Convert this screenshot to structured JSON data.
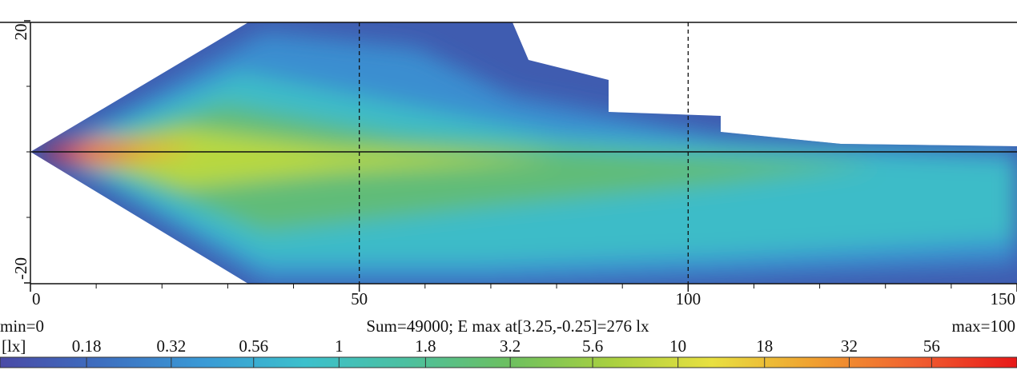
{
  "chart_data": {
    "type": "heatmap",
    "xlim": [
      0,
      150
    ],
    "xticks": [
      0,
      50,
      100,
      150
    ],
    "ylim": [
      -20,
      20
    ],
    "yticks": [
      -20,
      20
    ],
    "grid": true,
    "annotations": {
      "min": "min=0",
      "summary": "Sum=49000; E max at[3.25,-0.25]=276 lx",
      "max": "max=100"
    },
    "colorbar": {
      "label": "[lx]",
      "scale": "log",
      "lim": [
        0.1,
        100
      ],
      "ticks": [
        0.18,
        0.32,
        0.56,
        1,
        1.8,
        3.2,
        5.6,
        10,
        18,
        32,
        56
      ],
      "colors": [
        "#4a4aa6",
        "#3d6fc0",
        "#3a9ad6",
        "#3cc0cc",
        "#4cc0a0",
        "#6cc060",
        "#a8d040",
        "#e8e040",
        "#f0a030",
        "#f06030",
        "#e81818"
      ]
    }
  }
}
